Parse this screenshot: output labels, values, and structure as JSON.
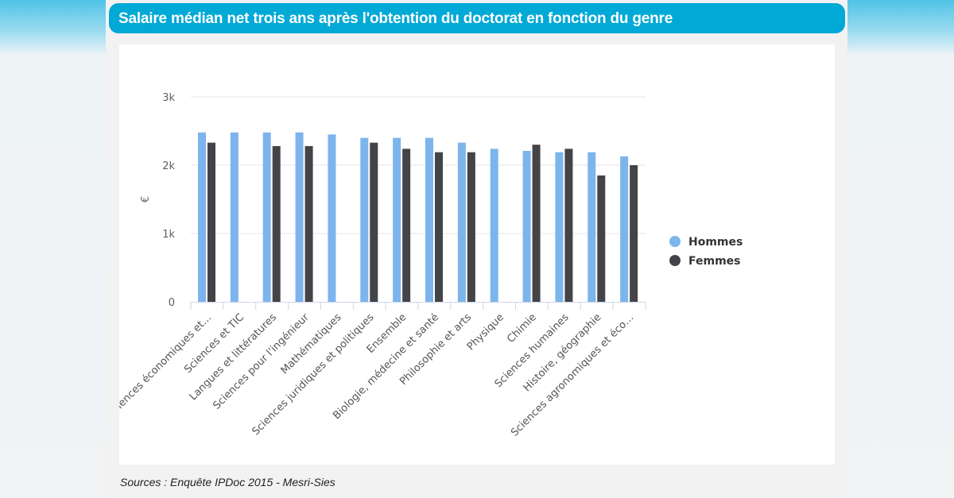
{
  "header": {
    "title": "Salaire médian net trois ans après l'obtention du doctorat en fonction du genre"
  },
  "footer": {
    "source": "Sources : Enquête IPDoc 2015 - Mesri-Sies"
  },
  "chart_data": {
    "type": "bar",
    "title": "",
    "xlabel": "",
    "ylabel": "€",
    "ylim": [
      0,
      3000
    ],
    "yticks": [
      0,
      1000,
      2000,
      3000
    ],
    "ytick_labels": [
      "0",
      "1k",
      "2k",
      "3k"
    ],
    "grid": true,
    "legend_position": "right",
    "categories": [
      "Sciences économiques et…",
      "Sciences et TIC",
      "Langues et littératures",
      "Sciences pour l'ingénieur",
      "Mathématiques",
      "Sciences juridiques et politiques",
      "Ensemble",
      "Biologie, médecine et santé",
      "Philosophie et arts",
      "Physique",
      "Chimie",
      "Sciences humaines",
      "Histoire, géographie",
      "Sciences agronomiques et éco…"
    ],
    "series": [
      {
        "name": "Hommes",
        "color": "#7cb5ec",
        "values": [
          2480,
          2480,
          2480,
          2480,
          2450,
          2400,
          2400,
          2400,
          2330,
          2240,
          2210,
          2190,
          2190,
          2130
        ]
      },
      {
        "name": "Femmes",
        "color": "#434348",
        "values": [
          2330,
          null,
          2280,
          2280,
          null,
          2330,
          2240,
          2190,
          2190,
          null,
          2300,
          2240,
          1850,
          2000
        ]
      }
    ]
  }
}
